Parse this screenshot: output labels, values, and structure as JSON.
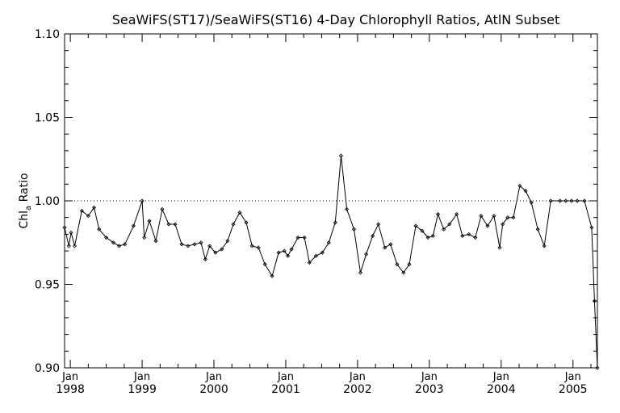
{
  "chart_data": {
    "type": "line",
    "title": "SeaWiFS(ST17)/SeaWiFS(ST16) 4-Day Chlorophyll Ratios, AtlN Subset",
    "ylabel": "Chl",
    "ylabel_sub": "a",
    "ylabel_rest": " Ratio",
    "xlim": [
      1997.92,
      2005.34
    ],
    "ylim": [
      0.9,
      1.1
    ],
    "yticks": [
      "1.10",
      "1.05",
      "1.00",
      "0.95",
      "0.90"
    ],
    "ytick_values": [
      1.1,
      1.05,
      1.0,
      0.95,
      0.9
    ],
    "xticks": [
      {
        "month": "Jan",
        "year": "1998",
        "value": 1998.0
      },
      {
        "month": "Jan",
        "year": "1999",
        "value": 1999.0
      },
      {
        "month": "Jan",
        "year": "2000",
        "value": 2000.0
      },
      {
        "month": "Jan",
        "year": "2001",
        "value": 2001.0
      },
      {
        "month": "Jan",
        "year": "2002",
        "value": 2002.0
      },
      {
        "month": "Jan",
        "year": "2003",
        "value": 2003.0
      },
      {
        "month": "Jan",
        "year": "2004",
        "value": 2004.0
      },
      {
        "month": "Jan",
        "year": "2005",
        "value": 2005.0
      }
    ],
    "reference_line": 1.0,
    "grid": false,
    "series": [
      {
        "x": [
          1997.92,
          1997.98,
          1998.01,
          1998.06,
          1998.16,
          1998.25,
          1998.33,
          1998.4,
          1998.5,
          1998.6,
          1998.68,
          1998.76,
          1998.88,
          1999.0,
          1999.03,
          1999.1,
          1999.19,
          1999.28,
          1999.37,
          1999.46,
          1999.55,
          1999.64,
          1999.73,
          1999.82,
          1999.88,
          1999.94,
          2000.02,
          2000.11,
          2000.19,
          2000.27,
          2000.36,
          2000.45,
          2000.53,
          2000.62,
          2000.71,
          2000.81,
          2000.9,
          2000.98,
          2001.03,
          2001.08,
          2001.17,
          2001.26,
          2001.33,
          2001.42,
          2001.51,
          2001.6,
          2001.69,
          2001.77,
          2001.85,
          2001.95,
          2002.04,
          2002.12,
          2002.21,
          2002.29,
          2002.38,
          2002.46,
          2002.55,
          2002.64,
          2002.72,
          2002.81,
          2002.9,
          2002.98,
          2003.05,
          2003.12,
          2003.2,
          2003.28,
          2003.38,
          2003.46,
          2003.55,
          2003.64,
          2003.72,
          2003.81,
          2003.9,
          2003.98,
          2004.02,
          2004.09,
          2004.17,
          2004.26,
          2004.34,
          2004.42,
          2004.51,
          2004.6,
          2004.69,
          2004.82,
          2004.9,
          2004.98,
          2005.06,
          2005.16,
          2005.26,
          2005.3,
          2005.34
        ],
        "y": [
          0.984,
          0.973,
          0.981,
          0.973,
          0.994,
          0.991,
          0.996,
          0.983,
          0.978,
          0.975,
          0.973,
          0.974,
          0.985,
          1.0,
          0.978,
          0.988,
          0.976,
          0.995,
          0.986,
          0.986,
          0.974,
          0.973,
          0.974,
          0.975,
          0.965,
          0.973,
          0.969,
          0.971,
          0.976,
          0.986,
          0.993,
          0.987,
          0.973,
          0.972,
          0.962,
          0.955,
          0.969,
          0.97,
          0.967,
          0.971,
          0.978,
          0.978,
          0.963,
          0.967,
          0.969,
          0.975,
          0.987,
          1.027,
          0.995,
          0.983,
          0.957,
          0.968,
          0.979,
          0.986,
          0.972,
          0.974,
          0.962,
          0.957,
          0.962,
          0.985,
          0.982,
          0.978,
          0.979,
          0.992,
          0.983,
          0.986,
          0.992,
          0.979,
          0.98,
          0.978,
          0.991,
          0.985,
          0.991,
          0.972,
          0.986,
          0.99,
          0.99,
          1.009,
          1.006,
          0.999,
          0.983,
          0.973,
          1.0,
          1.0,
          1.0,
          1.0,
          1.0,
          1.0,
          0.984,
          0.94,
          0.9
        ]
      }
    ]
  }
}
